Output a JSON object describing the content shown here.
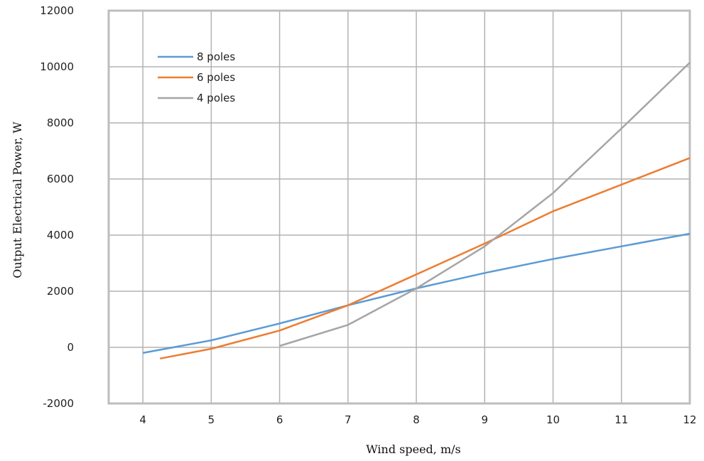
{
  "chart_data": {
    "type": "line",
    "title": "",
    "xlabel": "Wind speed, m/s",
    "ylabel": "Output Electrical Power, W",
    "xlim": [
      3.5,
      12
    ],
    "ylim": [
      -2000,
      12000
    ],
    "x_ticks": [
      4,
      5,
      6,
      7,
      8,
      9,
      10,
      11,
      12
    ],
    "y_ticks": [
      -2000,
      0,
      2000,
      4000,
      6000,
      8000,
      10000,
      12000
    ],
    "grid": true,
    "legend_position": "top-left",
    "series": [
      {
        "name": "8 poles",
        "color": "#5b9bd5",
        "points": [
          [
            4,
            -200
          ],
          [
            5,
            250
          ],
          [
            6,
            850
          ],
          [
            7,
            1500
          ],
          [
            8,
            2100
          ],
          [
            9,
            2650
          ],
          [
            10,
            3150
          ],
          [
            11,
            3600
          ],
          [
            12,
            4050
          ]
        ]
      },
      {
        "name": "6 poles",
        "color": "#ed7d31",
        "points": [
          [
            4.25,
            -400
          ],
          [
            5,
            -50
          ],
          [
            6,
            600
          ],
          [
            7,
            1500
          ],
          [
            8,
            2600
          ],
          [
            9,
            3700
          ],
          [
            10,
            4850
          ],
          [
            11,
            5800
          ],
          [
            12,
            6750
          ]
        ]
      },
      {
        "name": "4 poles",
        "color": "#a5a5a5",
        "points": [
          [
            6,
            50
          ],
          [
            7,
            800
          ],
          [
            8,
            2100
          ],
          [
            9,
            3600
          ],
          [
            10,
            5500
          ],
          [
            11,
            7800
          ],
          [
            12,
            10150
          ]
        ]
      }
    ]
  }
}
